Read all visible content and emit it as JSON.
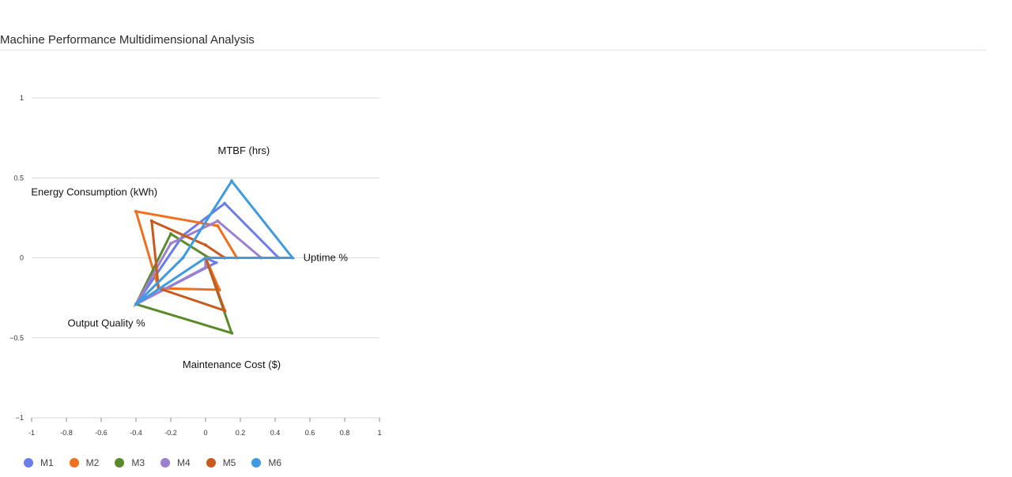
{
  "title": "Machine Performance Multidimensional Analysis",
  "chart_data": {
    "type": "radar",
    "plot_type": "scatter-lines",
    "xlim": [
      -1,
      1
    ],
    "ylim": [
      -1,
      1
    ],
    "x_ticks": [
      {
        "value": -1,
        "label": "-1"
      },
      {
        "value": -0.8,
        "label": "-0.8"
      },
      {
        "value": -0.6,
        "label": "-0.6"
      },
      {
        "value": -0.4,
        "label": "-0.4"
      },
      {
        "value": -0.2,
        "label": "-0.2"
      },
      {
        "value": 0,
        "label": "0"
      },
      {
        "value": 0.2,
        "label": "0.2"
      },
      {
        "value": 0.4,
        "label": "0.4"
      },
      {
        "value": 0.6,
        "label": "0.6"
      },
      {
        "value": 0.8,
        "label": "0.8"
      },
      {
        "value": 1,
        "label": "1"
      }
    ],
    "y_ticks": [
      {
        "value": 1,
        "label": "1"
      },
      {
        "value": 0.5,
        "label": "0.5"
      },
      {
        "value": 0,
        "label": "0"
      },
      {
        "value": -0.5,
        "label": "−0.5"
      },
      {
        "value": -1,
        "label": "−1"
      }
    ],
    "axis_labels": [
      {
        "text": "MTBF (hrs)",
        "x": 0.22,
        "y": 0.67
      },
      {
        "text": "Energy Consumption (kWh)",
        "x": -0.64,
        "y": 0.41
      },
      {
        "text": "Uptime %",
        "x": 0.69,
        "y": 0.0
      },
      {
        "text": "Output Quality %",
        "x": -0.57,
        "y": -0.41
      },
      {
        "text": "Maintenance Cost ($)",
        "x": 0.15,
        "y": -0.67
      }
    ],
    "series": [
      {
        "name": "M1",
        "color": "#6b7de8",
        "x": [
          0.0,
          0.42,
          0.11,
          -0.13,
          -0.4,
          0.06,
          0.0
        ],
        "y": [
          0.0,
          0.0,
          0.34,
          0.14,
          -0.29,
          -0.03,
          0.0
        ]
      },
      {
        "name": "M2",
        "color": "#f07020",
        "x": [
          0.0,
          0.18,
          0.07,
          -0.4,
          -0.27,
          0.08,
          0.0
        ],
        "y": [
          0.0,
          0.0,
          0.2,
          0.29,
          -0.19,
          -0.2,
          0.0
        ]
      },
      {
        "name": "M3",
        "color": "#5a8a2a",
        "x": [
          0.0,
          0.02,
          0.02,
          -0.2,
          -0.4,
          0.15,
          0.0
        ],
        "y": [
          0.0,
          0.0,
          0.0,
          0.15,
          -0.29,
          -0.47,
          0.0
        ]
      },
      {
        "name": "M4",
        "color": "#9d7fd0",
        "x": [
          0.0,
          0.32,
          0.07,
          -0.2,
          -0.4,
          0.0,
          0.0
        ],
        "y": [
          0.0,
          0.0,
          0.23,
          0.09,
          -0.29,
          -0.06,
          0.0
        ]
      },
      {
        "name": "M5",
        "color": "#c75a1e",
        "x": [
          0.0,
          0.11,
          0.0,
          -0.31,
          -0.27,
          0.11,
          0.0
        ],
        "y": [
          0.0,
          0.0,
          0.08,
          0.23,
          -0.19,
          -0.33,
          0.0
        ]
      },
      {
        "name": "M6",
        "color": "#3f9ae0",
        "x": [
          0.0,
          0.5,
          0.15,
          -0.13,
          -0.4,
          0.0,
          0.0
        ],
        "y": [
          0.0,
          0.0,
          0.48,
          0.0,
          -0.29,
          0.0,
          0.0
        ]
      }
    ]
  }
}
